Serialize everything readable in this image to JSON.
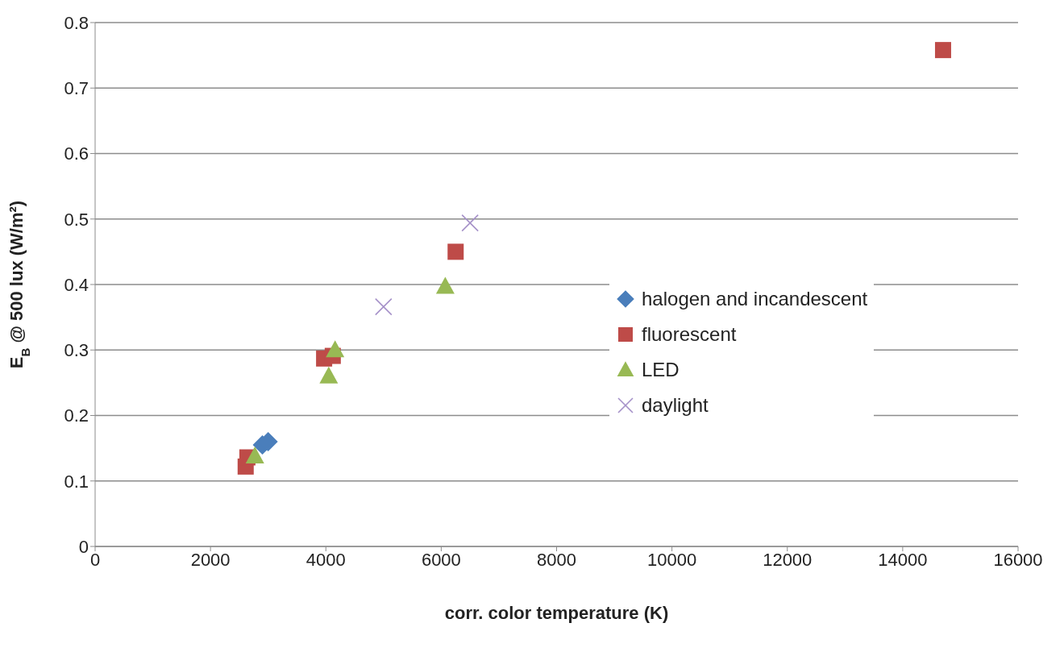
{
  "chart_data": {
    "type": "scatter",
    "xlabel": "corr. color temperature (K)",
    "ylabel": "E$_{B}$ @ 500 lux (W/m²)",
    "xlim": [
      0,
      16000
    ],
    "xticks": [
      0,
      2000,
      4000,
      6000,
      8000,
      10000,
      12000,
      14000,
      16000
    ],
    "ylim": [
      0,
      0.8
    ],
    "yticks": [
      0,
      0.1,
      0.2,
      0.3,
      0.4,
      0.5,
      0.6,
      0.7,
      0.8
    ],
    "grid": "y",
    "legend": "right",
    "series": [
      {
        "name": "halogen and incandescent",
        "color": "#4a7ebb",
        "marker": "diamond",
        "x": [
          2900,
          3000
        ],
        "values": [
          0.155,
          0.16
        ]
      },
      {
        "name": "fluorescent",
        "color": "#be4b48",
        "marker": "square",
        "x": [
          2610,
          2640,
          3970,
          4120,
          6250,
          14700
        ],
        "values": [
          0.122,
          0.136,
          0.287,
          0.291,
          0.45,
          0.758
        ]
      },
      {
        "name": "LED",
        "color": "#98b954",
        "marker": "triangle",
        "x": [
          2770,
          4050,
          4160,
          6070
        ],
        "values": [
          0.138,
          0.26,
          0.3,
          0.397
        ]
      },
      {
        "name": "daylight",
        "color": "#a692c9",
        "marker": "cross",
        "x": [
          5000,
          6500
        ],
        "values": [
          0.366,
          0.494
        ]
      }
    ]
  }
}
